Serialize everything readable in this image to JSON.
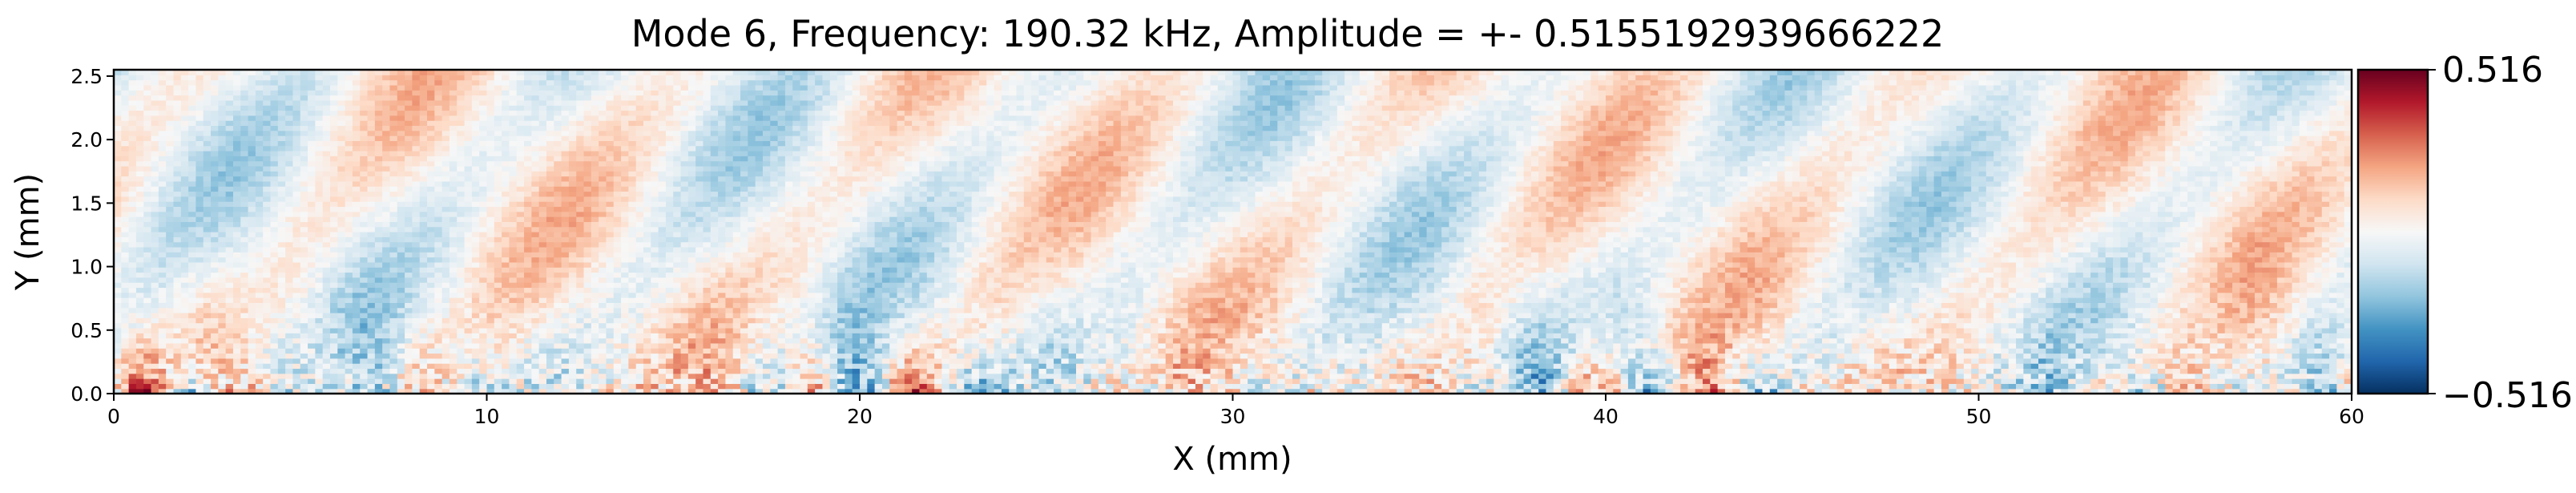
{
  "chart_data": {
    "type": "heatmap",
    "title": "Mode 6, Frequency: 190.32 kHz, Amplitude = +- 0.5155192939666222",
    "xlabel": "X (mm)",
    "ylabel": "Y (mm)",
    "xlim": [
      0,
      60
    ],
    "ylim": [
      0,
      2.55
    ],
    "x_ticks": [
      0,
      10,
      20,
      30,
      40,
      50,
      60
    ],
    "x_tick_labels": [
      "0",
      "10",
      "20",
      "30",
      "40",
      "50",
      "60"
    ],
    "y_ticks": [
      0.0,
      0.5,
      1.0,
      1.5,
      2.0,
      2.5
    ],
    "y_tick_labels": [
      "0.0",
      "0.5",
      "1.0",
      "1.5",
      "2.0",
      "2.5"
    ],
    "colormap": "RdBu_r",
    "colorbar": {
      "min": -0.516,
      "max": 0.516,
      "min_label": "−0.516",
      "max_label": "0.516",
      "placement": "right"
    },
    "colors": {
      "high": "#67001f",
      "low": "#053061",
      "mid": "#f7f7f7"
    },
    "grid": false,
    "legend": "none"
  }
}
